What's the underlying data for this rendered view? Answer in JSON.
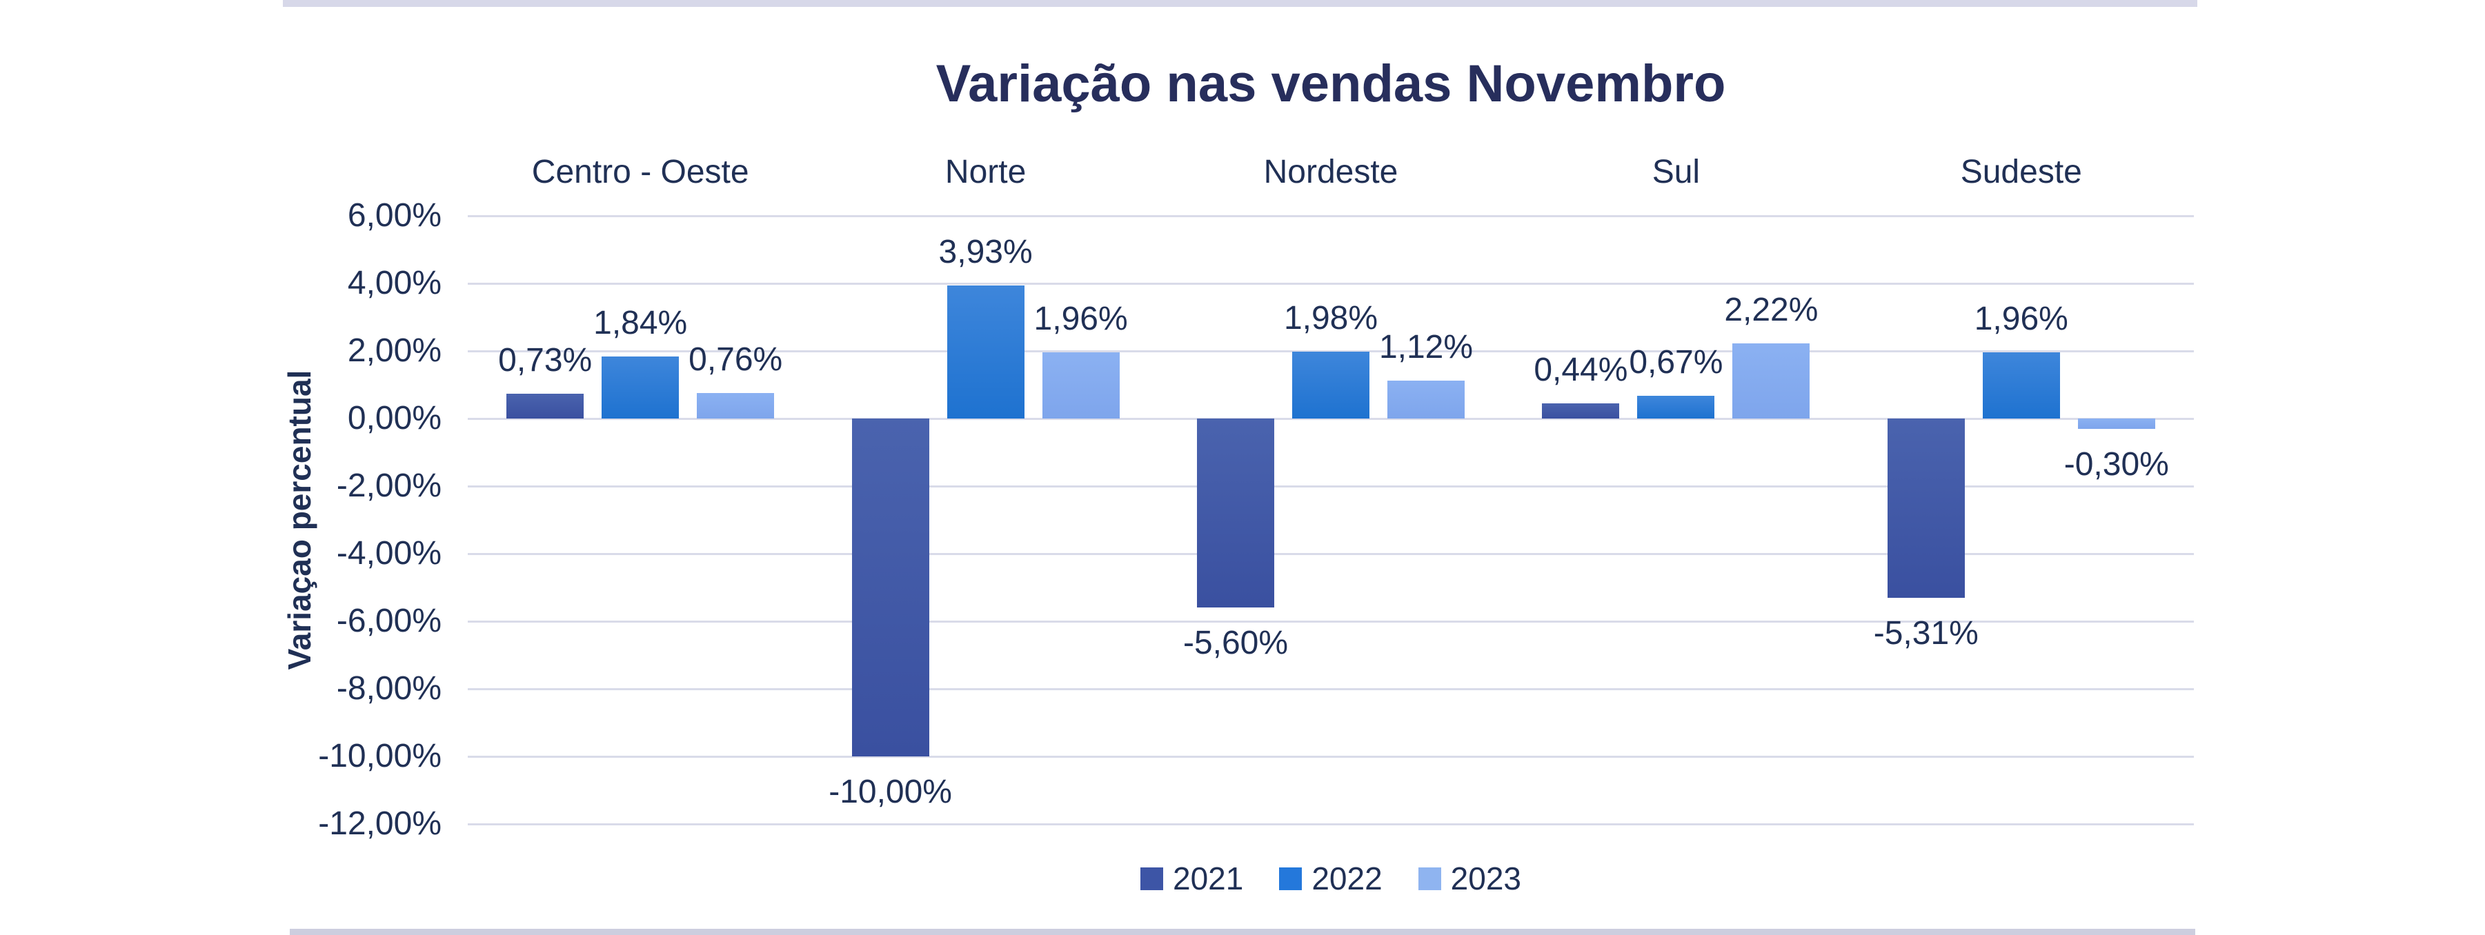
{
  "page": {
    "background": "#FFFFFF",
    "top_divider_color": "#D7D8E9",
    "bottom_divider_color": "#CDCEDF"
  },
  "chart_data": {
    "type": "bar",
    "title": "Variação nas vendas Novembro",
    "ylabel": "Variaçao percentual",
    "xlabel": "",
    "categories": [
      "Centro - Oeste",
      "Norte",
      "Nordeste",
      "Sul",
      "Sudeste"
    ],
    "series": [
      {
        "name": "2021",
        "values": [
          0.73,
          -10.0,
          -5.6,
          0.44,
          -5.31
        ],
        "labels": [
          "0,73%",
          "-10,00%",
          "-5,60%",
          "0,44%",
          "-5,31%"
        ],
        "color_top": "#4A63AE",
        "color_bottom": "#3A50A0",
        "legend_color": "#3D55A6"
      },
      {
        "name": "2022",
        "values": [
          1.84,
          3.93,
          1.98,
          0.67,
          1.96
        ],
        "labels": [
          "1,84%",
          "3,93%",
          "1,98%",
          "0,67%",
          "1,96%"
        ],
        "color_top": "#3E86DB",
        "color_bottom": "#1E72D0",
        "legend_color": "#2478DB"
      },
      {
        "name": "2023",
        "values": [
          0.76,
          1.96,
          1.12,
          2.22,
          -0.3
        ],
        "labels": [
          "0,76%",
          "1,96%",
          "1,12%",
          "2,22%",
          "-0,30%"
        ],
        "color_top": "#8BB1F2",
        "color_bottom": "#7EA5EC",
        "legend_color": "#8FB4F0"
      }
    ],
    "y_axis": {
      "min": -12,
      "max": 6,
      "step": 2,
      "tick_labels": [
        "6,00%",
        "4,00%",
        "2,00%",
        "0,00%",
        "-2,00%",
        "-4,00%",
        "-6,00%",
        "-8,00%",
        "-10,00%",
        "-12,00%"
      ],
      "gridline_color": "#D9DBE9"
    },
    "legend": {
      "position": "bottom"
    },
    "grid": "horizontal",
    "text_color": "#203055",
    "title_color": "#272E5C"
  }
}
